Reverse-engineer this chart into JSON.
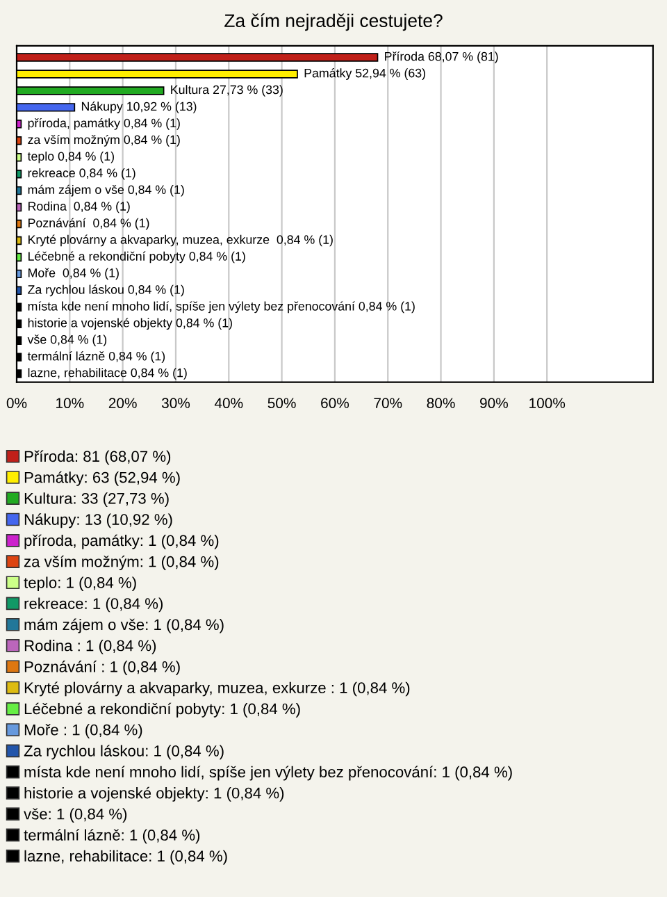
{
  "chart_data": {
    "type": "bar",
    "orientation": "horizontal",
    "title": "Za čím nejraději cestujete?",
    "categories": [
      null,
      null,
      null,
      null,
      null,
      null,
      null,
      null,
      null,
      null,
      null,
      null,
      null,
      null,
      null,
      null,
      null,
      null,
      null,
      null
    ],
    "series": [
      {
        "name": "Příroda: 81 (68,07 %)",
        "color": "#c0201a",
        "values": [
          68.07,
          null,
          null,
          null,
          null,
          null,
          null,
          null,
          null,
          null,
          null,
          null,
          null,
          null,
          null,
          null,
          null,
          null,
          null,
          null
        ],
        "value_labels": [
          "Příroda 68,07 % (81)",
          null,
          null,
          null,
          null,
          null,
          null,
          null,
          null,
          null,
          null,
          null,
          null,
          null,
          null,
          null,
          null,
          null,
          null,
          null
        ]
      },
      {
        "name": "Památky: 63 (52,94 %)",
        "color": "#ffee00",
        "values": [
          null,
          52.94,
          null,
          null,
          null,
          null,
          null,
          null,
          null,
          null,
          null,
          null,
          null,
          null,
          null,
          null,
          null,
          null,
          null,
          null
        ],
        "value_labels": [
          null,
          "Památky 52,94 % (63)",
          null,
          null,
          null,
          null,
          null,
          null,
          null,
          null,
          null,
          null,
          null,
          null,
          null,
          null,
          null,
          null,
          null,
          null
        ]
      },
      {
        "name": "Kultura: 33 (27,73 %)",
        "color": "#22aa22",
        "values": [
          null,
          null,
          27.73,
          null,
          null,
          null,
          null,
          null,
          null,
          null,
          null,
          null,
          null,
          null,
          null,
          null,
          null,
          null,
          null,
          null
        ],
        "value_labels": [
          null,
          null,
          "Kultura 27,73 % (33)",
          null,
          null,
          null,
          null,
          null,
          null,
          null,
          null,
          null,
          null,
          null,
          null,
          null,
          null,
          null,
          null,
          null
        ]
      },
      {
        "name": "Nákupy: 13 (10,92 %)",
        "color": "#4466ee",
        "values": [
          null,
          null,
          null,
          10.92,
          null,
          null,
          null,
          null,
          null,
          null,
          null,
          null,
          null,
          null,
          null,
          null,
          null,
          null,
          null,
          null
        ],
        "value_labels": [
          null,
          null,
          null,
          "Nákupy 10,92 % (13)",
          null,
          null,
          null,
          null,
          null,
          null,
          null,
          null,
          null,
          null,
          null,
          null,
          null,
          null,
          null,
          null
        ]
      },
      {
        "name": "příroda, památky: 1 (0,84 %)",
        "color": "#cc22cc",
        "values": [
          null,
          null,
          null,
          null,
          0.84,
          null,
          null,
          null,
          null,
          null,
          null,
          null,
          null,
          null,
          null,
          null,
          null,
          null,
          null,
          null
        ],
        "value_labels": [
          null,
          null,
          null,
          null,
          "příroda, památky 0,84 % (1)",
          null,
          null,
          null,
          null,
          null,
          null,
          null,
          null,
          null,
          null,
          null,
          null,
          null,
          null,
          null
        ]
      },
      {
        "name": "za vším možným: 1 (0,84 %)",
        "color": "#dd4411",
        "values": [
          null,
          null,
          null,
          null,
          null,
          0.84,
          null,
          null,
          null,
          null,
          null,
          null,
          null,
          null,
          null,
          null,
          null,
          null,
          null,
          null
        ],
        "value_labels": [
          null,
          null,
          null,
          null,
          null,
          "za vším možným 0,84 % (1)",
          null,
          null,
          null,
          null,
          null,
          null,
          null,
          null,
          null,
          null,
          null,
          null,
          null,
          null
        ]
      },
      {
        "name": "teplo: 1 (0,84 %)",
        "color": "#ccff88",
        "values": [
          null,
          null,
          null,
          null,
          null,
          null,
          0.84,
          null,
          null,
          null,
          null,
          null,
          null,
          null,
          null,
          null,
          null,
          null,
          null,
          null
        ],
        "value_labels": [
          null,
          null,
          null,
          null,
          null,
          null,
          "teplo 0,84 % (1)",
          null,
          null,
          null,
          null,
          null,
          null,
          null,
          null,
          null,
          null,
          null,
          null,
          null
        ]
      },
      {
        "name": "rekreace: 1 (0,84 %)",
        "color": "#119966",
        "values": [
          null,
          null,
          null,
          null,
          null,
          null,
          null,
          0.84,
          null,
          null,
          null,
          null,
          null,
          null,
          null,
          null,
          null,
          null,
          null,
          null
        ],
        "value_labels": [
          null,
          null,
          null,
          null,
          null,
          null,
          null,
          "rekreace 0,84 % (1)",
          null,
          null,
          null,
          null,
          null,
          null,
          null,
          null,
          null,
          null,
          null,
          null
        ]
      },
      {
        "name": "mám zájem o vše: 1 (0,84 %)",
        "color": "#227799",
        "values": [
          null,
          null,
          null,
          null,
          null,
          null,
          null,
          null,
          0.84,
          null,
          null,
          null,
          null,
          null,
          null,
          null,
          null,
          null,
          null,
          null
        ],
        "value_labels": [
          null,
          null,
          null,
          null,
          null,
          null,
          null,
          null,
          "mám zájem o vše 0,84 % (1)",
          null,
          null,
          null,
          null,
          null,
          null,
          null,
          null,
          null,
          null,
          null
        ]
      },
      {
        "name": "Rodina : 1 (0,84 %)",
        "color": "#bb66bb",
        "values": [
          null,
          null,
          null,
          null,
          null,
          null,
          null,
          null,
          null,
          0.84,
          null,
          null,
          null,
          null,
          null,
          null,
          null,
          null,
          null,
          null
        ],
        "value_labels": [
          null,
          null,
          null,
          null,
          null,
          null,
          null,
          null,
          null,
          "Rodina  0,84 % (1)",
          null,
          null,
          null,
          null,
          null,
          null,
          null,
          null,
          null,
          null
        ]
      },
      {
        "name": "Poznávání : 1 (0,84 %)",
        "color": "#dd7711",
        "values": [
          null,
          null,
          null,
          null,
          null,
          null,
          null,
          null,
          null,
          null,
          0.84,
          null,
          null,
          null,
          null,
          null,
          null,
          null,
          null,
          null
        ],
        "value_labels": [
          null,
          null,
          null,
          null,
          null,
          null,
          null,
          null,
          null,
          null,
          "Poznávání  0,84 % (1)",
          null,
          null,
          null,
          null,
          null,
          null,
          null,
          null,
          null
        ]
      },
      {
        "name": "Kryté plovárny a akvaparky, muzea, exkurze : 1 (0,84 %)",
        "color": "#ddbb11",
        "values": [
          null,
          null,
          null,
          null,
          null,
          null,
          null,
          null,
          null,
          null,
          null,
          0.84,
          null,
          null,
          null,
          null,
          null,
          null,
          null,
          null
        ],
        "value_labels": [
          null,
          null,
          null,
          null,
          null,
          null,
          null,
          null,
          null,
          null,
          null,
          "Kryté plovárny a akvaparky, muzea, exkurze  0,84 % (1)",
          null,
          null,
          null,
          null,
          null,
          null,
          null,
          null
        ]
      },
      {
        "name": "Léčebné a rekondiční pobyty: 1 (0,84 %)",
        "color": "#66ee44",
        "values": [
          null,
          null,
          null,
          null,
          null,
          null,
          null,
          null,
          null,
          null,
          null,
          null,
          0.84,
          null,
          null,
          null,
          null,
          null,
          null,
          null
        ],
        "value_labels": [
          null,
          null,
          null,
          null,
          null,
          null,
          null,
          null,
          null,
          null,
          null,
          null,
          "Léčebné a rekondiční pobyty 0,84 % (1)",
          null,
          null,
          null,
          null,
          null,
          null,
          null
        ]
      },
      {
        "name": "Moře : 1 (0,84 %)",
        "color": "#6699dd",
        "values": [
          null,
          null,
          null,
          null,
          null,
          null,
          null,
          null,
          null,
          null,
          null,
          null,
          null,
          0.84,
          null,
          null,
          null,
          null,
          null,
          null
        ],
        "value_labels": [
          null,
          null,
          null,
          null,
          null,
          null,
          null,
          null,
          null,
          null,
          null,
          null,
          null,
          "Moře  0,84 % (1)",
          null,
          null,
          null,
          null,
          null,
          null
        ]
      },
      {
        "name": "Za rychlou láskou: 1 (0,84 %)",
        "color": "#2255aa",
        "values": [
          null,
          null,
          null,
          null,
          null,
          null,
          null,
          null,
          null,
          null,
          null,
          null,
          null,
          null,
          0.84,
          null,
          null,
          null,
          null,
          null
        ],
        "value_labels": [
          null,
          null,
          null,
          null,
          null,
          null,
          null,
          null,
          null,
          null,
          null,
          null,
          null,
          null,
          "Za rychlou láskou 0,84 % (1)",
          null,
          null,
          null,
          null,
          null
        ]
      },
      {
        "name": "místa kde není mnoho lidí, spíše jen výlety bez přenocování: 1 (0,84 %)",
        "color": "#000000",
        "values": [
          null,
          null,
          null,
          null,
          null,
          null,
          null,
          null,
          null,
          null,
          null,
          null,
          null,
          null,
          null,
          0.84,
          null,
          null,
          null,
          null
        ],
        "value_labels": [
          null,
          null,
          null,
          null,
          null,
          null,
          null,
          null,
          null,
          null,
          null,
          null,
          null,
          null,
          null,
          "místa kde není mnoho lidí, spíše jen výlety bez přenocování 0,84 % (1)",
          null,
          null,
          null,
          null
        ]
      },
      {
        "name": "historie a vojenské objekty: 1 (0,84 %)",
        "color": "#000000",
        "values": [
          null,
          null,
          null,
          null,
          null,
          null,
          null,
          null,
          null,
          null,
          null,
          null,
          null,
          null,
          null,
          null,
          0.84,
          null,
          null,
          null
        ],
        "value_labels": [
          null,
          null,
          null,
          null,
          null,
          null,
          null,
          null,
          null,
          null,
          null,
          null,
          null,
          null,
          null,
          null,
          "historie a vojenské objekty 0,84 % (1)",
          null,
          null,
          null
        ]
      },
      {
        "name": "vše: 1 (0,84 %)",
        "color": "#000000",
        "values": [
          null,
          null,
          null,
          null,
          null,
          null,
          null,
          null,
          null,
          null,
          null,
          null,
          null,
          null,
          null,
          null,
          null,
          0.84,
          null,
          null
        ],
        "value_labels": [
          null,
          null,
          null,
          null,
          null,
          null,
          null,
          null,
          null,
          null,
          null,
          null,
          null,
          null,
          null,
          null,
          null,
          "vše 0,84 % (1)",
          null,
          null
        ]
      },
      {
        "name": "termální lázně: 1 (0,84 %)",
        "color": "#000000",
        "values": [
          null,
          null,
          null,
          null,
          null,
          null,
          null,
          null,
          null,
          null,
          null,
          null,
          null,
          null,
          null,
          null,
          null,
          null,
          0.84,
          null
        ],
        "value_labels": [
          null,
          null,
          null,
          null,
          null,
          null,
          null,
          null,
          null,
          null,
          null,
          null,
          null,
          null,
          null,
          null,
          null,
          null,
          "termální lázně 0,84 % (1)",
          null
        ]
      },
      {
        "name": "lazne, rehabilitace: 1 (0,84 %)",
        "color": "#000000",
        "values": [
          null,
          null,
          null,
          null,
          null,
          null,
          null,
          null,
          null,
          null,
          null,
          null,
          null,
          null,
          null,
          null,
          null,
          null,
          null,
          0.84
        ],
        "value_labels": [
          null,
          null,
          null,
          null,
          null,
          null,
          null,
          null,
          null,
          null,
          null,
          null,
          null,
          null,
          null,
          null,
          null,
          null,
          null,
          "lazne, rehabilitace 0,84 % (1)"
        ]
      }
    ],
    "xlim": [
      0,
      120
    ],
    "xticks": [
      {
        "value": 0,
        "label": "0%"
      },
      {
        "value": 10,
        "label": "10%"
      },
      {
        "value": 20,
        "label": "20%"
      },
      {
        "value": 30,
        "label": "30%"
      },
      {
        "value": 40,
        "label": "40%"
      },
      {
        "value": 50,
        "label": "50%"
      },
      {
        "value": 60,
        "label": "60%"
      },
      {
        "value": 70,
        "label": "70%"
      },
      {
        "value": 80,
        "label": "80%"
      },
      {
        "value": 90,
        "label": "90%"
      },
      {
        "value": 100,
        "label": "100%"
      }
    ],
    "grid": "x",
    "legend": "bottom",
    "tick_labels": "x"
  }
}
